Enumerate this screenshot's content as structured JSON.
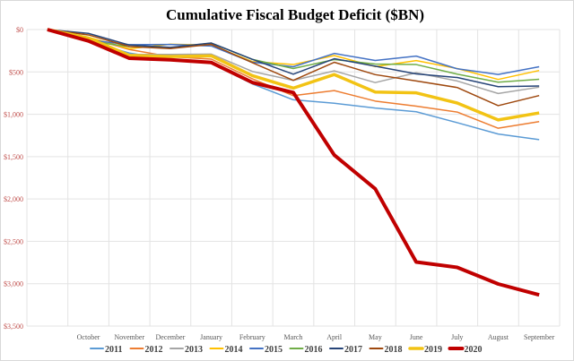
{
  "chart_data": {
    "type": "line",
    "title": "Cumulative Fiscal Budget Deficit ($BN)",
    "xlabel": "",
    "ylabel": "",
    "categories": [
      "",
      "October",
      "November",
      "December",
      "January",
      "February",
      "March",
      "April",
      "May",
      "June",
      "July",
      "August",
      "September"
    ],
    "y_axis": {
      "reversed": true,
      "range": [
        0,
        3500
      ],
      "ticks": [
        "$0",
        "$500",
        "$1,000",
        "$1,500",
        "$2,000",
        "$2,500",
        "$3,000",
        "$3,500"
      ],
      "tick_color": "#c0504d"
    },
    "grid": true,
    "legend": "bottom",
    "series": [
      {
        "name": "2011",
        "color": "#5b9bd5",
        "width": 1.5,
        "values": [
          0,
          140,
          277,
          352,
          398,
          641,
          829,
          870,
          927,
          970,
          1099,
          1233,
          1299
        ]
      },
      {
        "name": "2012",
        "color": "#ed7d31",
        "width": 1.5,
        "values": [
          0,
          98,
          235,
          321,
          349,
          581,
          780,
          720,
          844,
          904,
          974,
          1165,
          1087
        ]
      },
      {
        "name": "2013",
        "color": "#a5a5a5",
        "width": 1.5,
        "values": [
          0,
          120,
          292,
          293,
          290,
          494,
          600,
          488,
          626,
          510,
          607,
          755,
          680
        ]
      },
      {
        "name": "2014",
        "color": "#ffc000",
        "width": 1.5,
        "values": [
          0,
          91,
          226,
          173,
          184,
          378,
          413,
          307,
          437,
          366,
          460,
          589,
          483
        ]
      },
      {
        "name": "2015",
        "color": "#4472c4",
        "width": 1.5,
        "values": [
          0,
          122,
          178,
          176,
          194,
          386,
          439,
          282,
          365,
          313,
          463,
          530,
          439
        ]
      },
      {
        "name": "2016",
        "color": "#70ad47",
        "width": 1.5,
        "values": [
          0,
          136,
          201,
          215,
          160,
          352,
          460,
          354,
          407,
          413,
          526,
          621,
          587
        ]
      },
      {
        "name": "2017",
        "color": "#264478",
        "width": 1.5,
        "values": [
          0,
          45,
          183,
          210,
          159,
          351,
          527,
          344,
          432,
          523,
          566,
          674,
          666
        ]
      },
      {
        "name": "2018",
        "color": "#9e480e",
        "width": 1.5,
        "values": [
          0,
          63,
          201,
          225,
          175,
          391,
          600,
          386,
          532,
          607,
          684,
          898,
          779
        ]
      },
      {
        "name": "2019",
        "color": "#f2c314",
        "width": 3.5,
        "values": [
          0,
          100,
          305,
          319,
          310,
          544,
          691,
          531,
          738,
          747,
          867,
          1067,
          984
        ]
      },
      {
        "name": "2020",
        "color": "#c00000",
        "width": 4,
        "values": [
          0,
          134,
          339,
          357,
          389,
          624,
          743,
          1481,
          1880,
          2744,
          2807,
          3003,
          3132
        ]
      }
    ]
  }
}
